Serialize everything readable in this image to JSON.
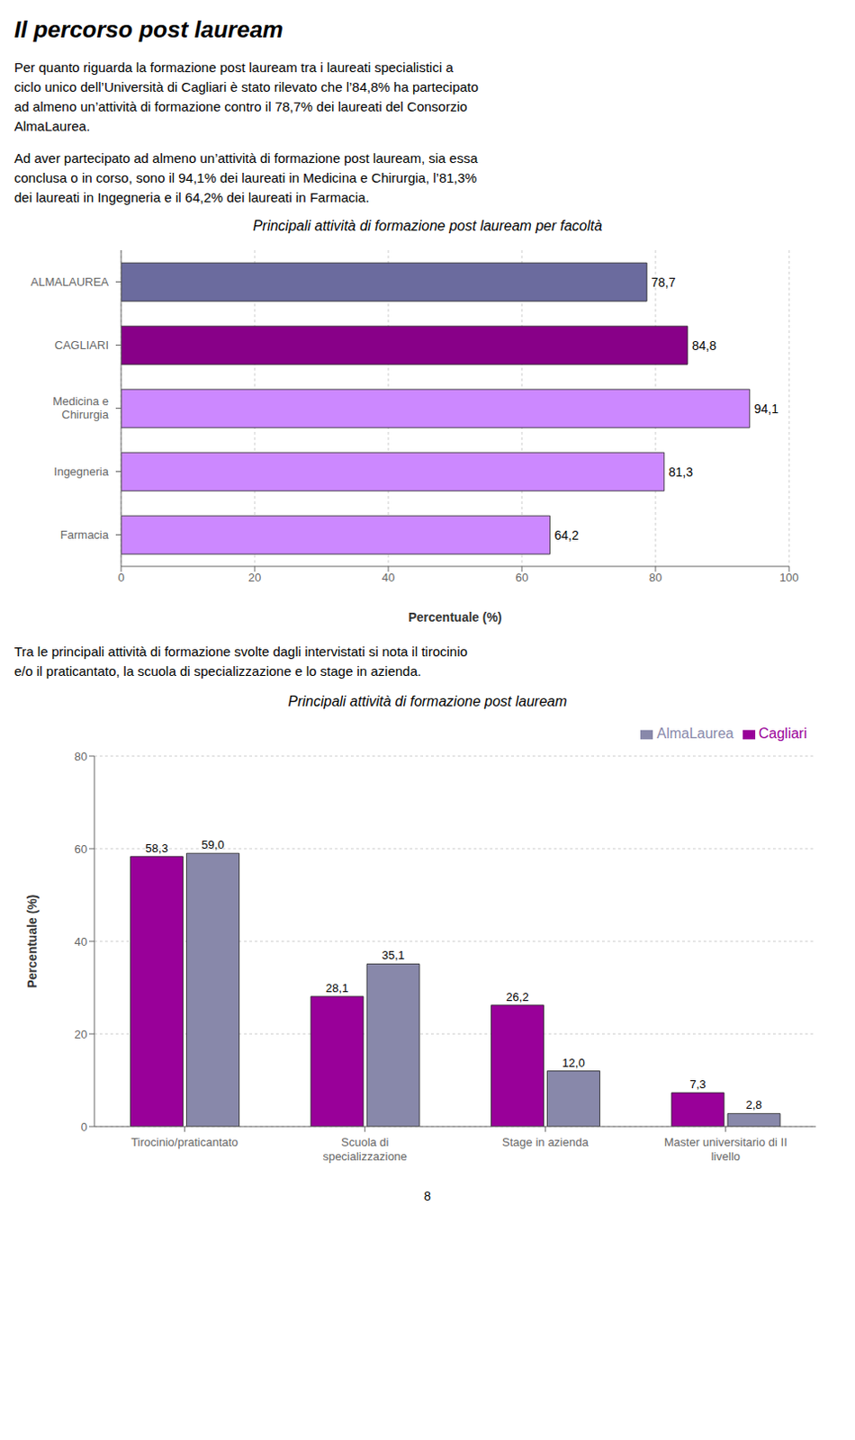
{
  "title": "Il percorso post lauream",
  "annotations": [
    "Per quanto riguarda la formazione post lauream tra i laureati specialistici a",
    "ciclo unico dell’Università di Cagliari è stato rilevato che l’84,8% ha partecipato",
    "ad almeno un’attività di formazione contro il 78,7% dei laureati del Consorzio",
    "AlmaLaurea.",
    "Ad aver partecipato ad almeno un’attività di formazione post lauream, sia essa",
    "conclusa o in corso, sono il 94,1% dei laureati in Medicina e Chirurgia, l’81,3%",
    "dei laureati in Ingegneria e il 64,2% dei laureati in Farmacia."
  ],
  "chart_data": [
    {
      "type": "bar",
      "title": "Principali attività di formazione post lauream per facoltà",
      "orientation": "horizontal",
      "categories": [
        "ALMALAUREA",
        "CAGLIARI",
        "Medicina e\nChirurgia",
        "Ingegneria",
        "Farmacia"
      ],
      "values": [
        78.7,
        84.8,
        94.1,
        81.3,
        64.2
      ],
      "value_labels": [
        "78,7",
        "84,8",
        "94,1",
        "81,3",
        "64,2"
      ],
      "colors": [
        "#6b6b9e",
        "#880088",
        "#cc88ff",
        "#cc88ff",
        "#cc88ff"
      ],
      "xlabel": "Percentuale (%)",
      "xlim": [
        0,
        100
      ],
      "xticks": [
        0,
        20,
        40,
        60,
        80,
        100
      ],
      "grid": true,
      "data_labels": true,
      "annotations": []
    },
    {
      "type": "bar",
      "title": "Principali attività di formazione post lauream",
      "categories": [
        "Tirocinio/praticantato",
        "Scuola di\nspecializzazione",
        "Stage in azienda",
        "Master universitario di II\nlivello"
      ],
      "series": [
        {
          "name": "Cagliari",
          "color": "#990099",
          "values": [
            58.3,
            28.1,
            26.2,
            7.3
          ],
          "value_labels": [
            "58,3",
            "28,1",
            "26,2",
            "7,3"
          ]
        },
        {
          "name": "AlmaLaurea",
          "color": "#8888aa",
          "values": [
            59.0,
            35.1,
            12.0,
            2.8
          ],
          "value_labels": [
            "59,0",
            "35,1",
            "12,0",
            "2,8"
          ]
        }
      ],
      "ylabel": "Percentuale (%)",
      "ylim": [
        0,
        80
      ],
      "yticks": [
        0,
        20,
        40,
        60,
        80
      ],
      "grid": true,
      "data_labels": true,
      "legend": "upper right",
      "annotations": [
        "Tra le principali attività di formazione svolte dagli intervistati si nota il tirocinio",
        "e/o il praticantato, la scuola di specializzazione e lo stage in azienda."
      ]
    }
  ],
  "page_number": "8"
}
